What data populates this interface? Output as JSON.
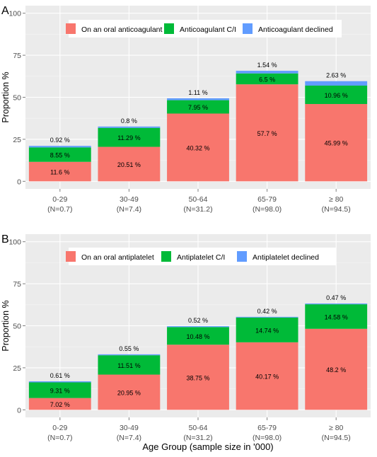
{
  "figure": {
    "xlabel": "Age Group (sample size in '000)"
  },
  "colors": {
    "panel_bg": "#EBEBEB",
    "grid": "#FFFFFF",
    "tick_label": "#4D4D4D",
    "series": [
      "#F8766D",
      "#00BA38",
      "#619CFF"
    ]
  },
  "chart_data": [
    {
      "type": "bar",
      "stacked": true,
      "panel_label": "A",
      "title": "",
      "ylabel": "Proportion %",
      "xlabel": "Age Group (sample size in '000)",
      "ylim": [
        0,
        100
      ],
      "yticks": [
        "0",
        "25",
        "50",
        "75",
        "100"
      ],
      "grid": true,
      "legend_position": "top",
      "categories": [
        "0-29",
        "30-49",
        "50-64",
        "65-79",
        "≥ 80"
      ],
      "category_sublabels": [
        "(N=0.7)",
        "(N=7.4)",
        "(N=31.2)",
        "(N=98.0)",
        "(N=94.5)"
      ],
      "series": [
        {
          "name": "On an oral anticoagulant",
          "values": [
            11.6,
            20.51,
            40.32,
            57.7,
            45.99
          ],
          "labels": [
            "11.6 %",
            "20.51 %",
            "40.32 %",
            "57.7 %",
            "45.99 %"
          ]
        },
        {
          "name": "Anticoagulant C/I",
          "values": [
            8.55,
            11.29,
            7.95,
            6.5,
            10.96
          ],
          "labels": [
            "8.55 %",
            "11.29 %",
            "7.95 %",
            "6.5 %",
            "10.96 %"
          ]
        },
        {
          "name": "Anticoagulant declined",
          "values": [
            0.92,
            0.8,
            1.11,
            1.54,
            2.63
          ],
          "labels": [
            "0.92 %",
            "0.8 %",
            "1.11 %",
            "1.54 %",
            "2.63 %"
          ]
        }
      ]
    },
    {
      "type": "bar",
      "stacked": true,
      "panel_label": "B",
      "title": "",
      "ylabel": "Proportion %",
      "xlabel": "Age Group (sample size in '000)",
      "ylim": [
        0,
        100
      ],
      "yticks": [
        "0",
        "25",
        "50",
        "75",
        "100"
      ],
      "grid": true,
      "legend_position": "top",
      "categories": [
        "0-29",
        "30-49",
        "50-64",
        "65-79",
        "≥ 80"
      ],
      "category_sublabels": [
        "(N=0.7)",
        "(N=7.4)",
        "(N=31.2)",
        "(N=98.0)",
        "(N=94.5)"
      ],
      "series": [
        {
          "name": "On an oral antiplatelet",
          "values": [
            7.02,
            20.95,
            38.75,
            40.17,
            48.2
          ],
          "labels": [
            "7.02 %",
            "20.95 %",
            "38.75 %",
            "40.17 %",
            "48.2 %"
          ]
        },
        {
          "name": "Antiplatelet C/I",
          "values": [
            9.31,
            11.51,
            10.48,
            14.74,
            14.58
          ],
          "labels": [
            "9.31 %",
            "11.51 %",
            "10.48 %",
            "14.74 %",
            "14.58 %"
          ]
        },
        {
          "name": "Antiplatelet declined",
          "values": [
            0.61,
            0.55,
            0.52,
            0.42,
            0.47
          ],
          "labels": [
            "0.61 %",
            "0.55 %",
            "0.52 %",
            "0.42 %",
            "0.47 %"
          ]
        }
      ]
    }
  ]
}
